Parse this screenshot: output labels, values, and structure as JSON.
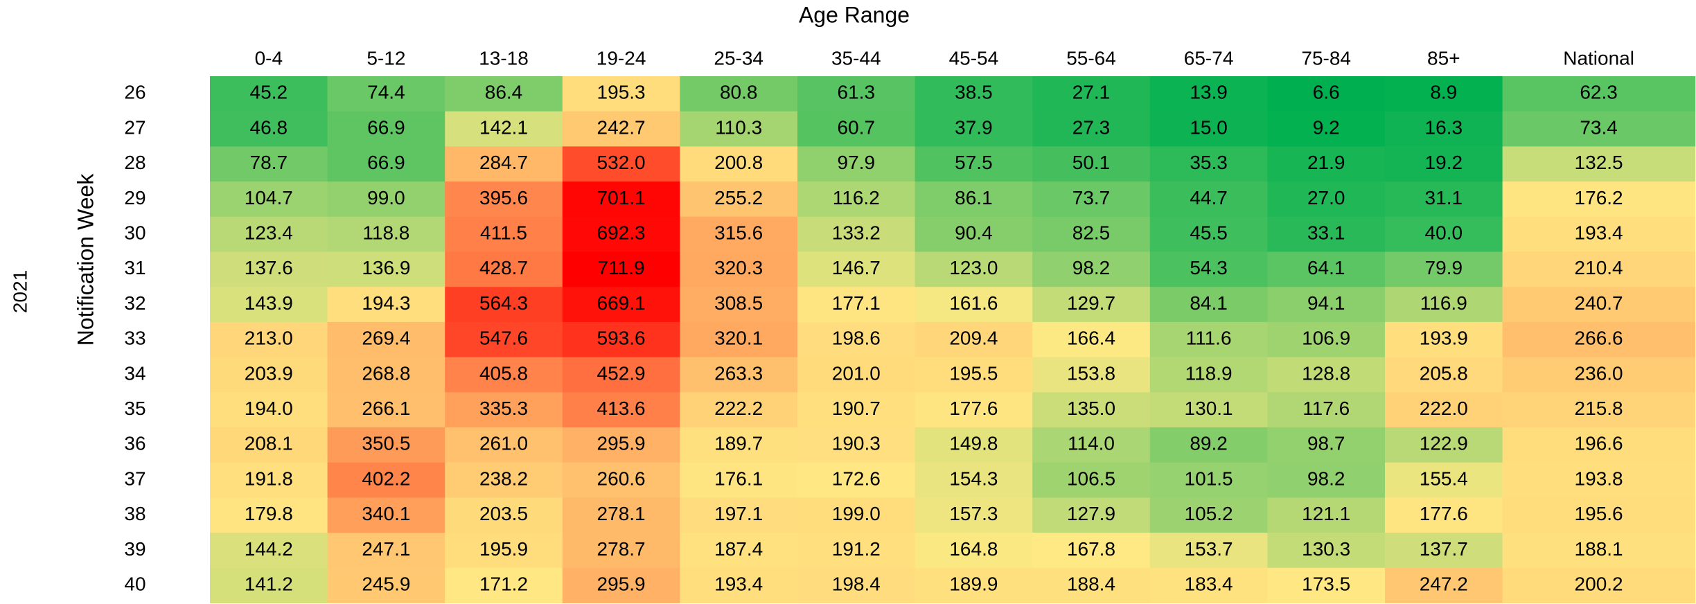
{
  "chart_data": {
    "type": "heatmap",
    "x_label": "Age Range",
    "y_label": "Notification Week",
    "group_label": "2021",
    "categories": [
      "0-4",
      "5-12",
      "13-18",
      "19-24",
      "25-34",
      "35-44",
      "45-54",
      "55-64",
      "65-74",
      "75-84",
      "85+",
      "National"
    ],
    "rows": [
      26,
      27,
      28,
      29,
      30,
      31,
      32,
      33,
      34,
      35,
      36,
      37,
      38,
      39,
      40
    ],
    "values": [
      [
        45.2,
        74.4,
        86.4,
        195.3,
        80.8,
        61.3,
        38.5,
        27.1,
        13.9,
        6.6,
        8.9,
        62.3
      ],
      [
        46.8,
        66.9,
        142.1,
        242.7,
        110.3,
        60.7,
        37.9,
        27.3,
        15.0,
        9.2,
        16.3,
        73.4
      ],
      [
        78.7,
        66.9,
        284.7,
        532.0,
        200.8,
        97.9,
        57.5,
        50.1,
        35.3,
        21.9,
        19.2,
        132.5
      ],
      [
        104.7,
        99.0,
        395.6,
        701.1,
        255.2,
        116.2,
        86.1,
        73.7,
        44.7,
        27.0,
        31.1,
        176.2
      ],
      [
        123.4,
        118.8,
        411.5,
        692.3,
        315.6,
        133.2,
        90.4,
        82.5,
        45.5,
        33.1,
        40.0,
        193.4
      ],
      [
        137.6,
        136.9,
        428.7,
        711.9,
        320.3,
        146.7,
        123.0,
        98.2,
        54.3,
        64.1,
        79.9,
        210.4
      ],
      [
        143.9,
        194.3,
        564.3,
        669.1,
        308.5,
        177.1,
        161.6,
        129.7,
        84.1,
        94.1,
        116.9,
        240.7
      ],
      [
        213.0,
        269.4,
        547.6,
        593.6,
        320.1,
        198.6,
        209.4,
        166.4,
        111.6,
        106.9,
        193.9,
        266.6
      ],
      [
        203.9,
        268.8,
        405.8,
        452.9,
        263.3,
        201.0,
        195.5,
        153.8,
        118.9,
        128.8,
        205.8,
        236.0
      ],
      [
        194.0,
        266.1,
        335.3,
        413.6,
        222.2,
        190.7,
        177.6,
        135.0,
        130.1,
        117.6,
        222.0,
        215.8
      ],
      [
        208.1,
        350.5,
        261.0,
        295.9,
        189.7,
        190.3,
        149.8,
        114.0,
        89.2,
        98.7,
        122.9,
        196.6
      ],
      [
        191.8,
        402.2,
        238.2,
        260.6,
        176.1,
        172.6,
        154.3,
        106.5,
        101.5,
        98.2,
        155.4,
        193.8
      ],
      [
        179.8,
        340.1,
        203.5,
        278.1,
        197.1,
        199.0,
        157.3,
        127.9,
        105.2,
        121.1,
        177.6,
        195.6
      ],
      [
        144.2,
        247.1,
        195.9,
        278.7,
        187.4,
        191.2,
        164.8,
        167.8,
        153.7,
        130.3,
        137.7,
        188.1
      ],
      [
        141.2,
        245.9,
        171.2,
        295.9,
        193.4,
        198.4,
        189.9,
        188.4,
        183.4,
        173.5,
        247.2,
        200.2
      ]
    ],
    "value_labels": [
      [
        "45.2",
        "74.4",
        "86.4",
        "195.3",
        "80.8",
        "61.3",
        "38.5",
        "27.1",
        "13.9",
        "6.6",
        "8.9",
        "62.3"
      ],
      [
        "46.8",
        "66.9",
        "142.1",
        "242.7",
        "110.3",
        "60.7",
        "37.9",
        "27.3",
        "15.0",
        "9.2",
        "16.3",
        "73.4"
      ],
      [
        "78.7",
        "66.9",
        "284.7",
        "532.0",
        "200.8",
        "97.9",
        "57.5",
        "50.1",
        "35.3",
        "21.9",
        "19.2",
        "132.5"
      ],
      [
        "104.7",
        "99.0",
        "395.6",
        "701.1",
        "255.2",
        "116.2",
        "86.1",
        "73.7",
        "44.7",
        "27.0",
        "31.1",
        "176.2"
      ],
      [
        "123.4",
        "118.8",
        "411.5",
        "692.3",
        "315.6",
        "133.2",
        "90.4",
        "82.5",
        "45.5",
        "33.1",
        "40.0",
        "193.4"
      ],
      [
        "137.6",
        "136.9",
        "428.7",
        "711.9",
        "320.3",
        "146.7",
        "123.0",
        "98.2",
        "54.3",
        "64.1",
        "79.9",
        "210.4"
      ],
      [
        "143.9",
        "194.3",
        "564.3",
        "669.1",
        "308.5",
        "177.1",
        "161.6",
        "129.7",
        "84.1",
        "94.1",
        "116.9",
        "240.7"
      ],
      [
        "213.0",
        "269.4",
        "547.6",
        "593.6",
        "320.1",
        "198.6",
        "209.4",
        "166.4",
        "111.6",
        "106.9",
        "193.9",
        "266.6"
      ],
      [
        "203.9",
        "268.8",
        "405.8",
        "452.9",
        "263.3",
        "201.0",
        "195.5",
        "153.8",
        "118.9",
        "128.8",
        "205.8",
        "236.0"
      ],
      [
        "194.0",
        "266.1",
        "335.3",
        "413.6",
        "222.2",
        "190.7",
        "177.6",
        "135.0",
        "130.1",
        "117.6",
        "222.0",
        "215.8"
      ],
      [
        "208.1",
        "350.5",
        "261.0",
        "295.9",
        "189.7",
        "190.3",
        "149.8",
        "114.0",
        "89.2",
        "98.7",
        "122.9",
        "196.6"
      ],
      [
        "191.8",
        "402.2",
        "238.2",
        "260.6",
        "176.1",
        "172.6",
        "154.3",
        "106.5",
        "101.5",
        "98.2",
        "155.4",
        "193.8"
      ],
      [
        "179.8",
        "340.1",
        "203.5",
        "278.1",
        "197.1",
        "199.0",
        "157.3",
        "127.9",
        "105.2",
        "121.1",
        "177.6",
        "195.6"
      ],
      [
        "144.2",
        "247.1",
        "195.9",
        "278.7",
        "187.4",
        "191.2",
        "164.8",
        "167.8",
        "153.7",
        "130.3",
        "137.7",
        "188.1"
      ],
      [
        "141.2",
        "245.9",
        "171.2",
        "295.9",
        "193.4",
        "198.4",
        "189.9",
        "188.4",
        "183.4",
        "173.5",
        "247.2",
        "200.2"
      ]
    ],
    "colors": {
      "low": "#00b050",
      "mid": "#ffe984",
      "high": "#ff0000"
    }
  }
}
